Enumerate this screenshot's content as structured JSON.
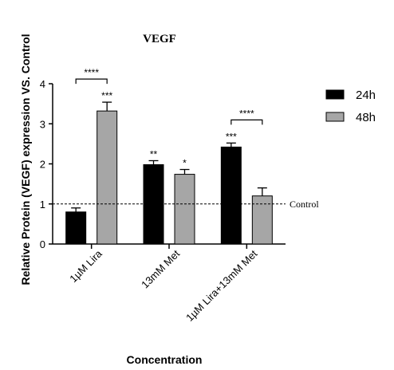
{
  "chart_data": {
    "type": "bar",
    "title": "VEGF",
    "xlabel": "Concentration",
    "ylabel": "Relative Protein (VEGF) expression VS. Control",
    "ylim": [
      0,
      4
    ],
    "yticks": [
      0,
      1,
      2,
      3,
      4
    ],
    "categories": [
      "1µM Lira",
      "13mM Met",
      "1µM Lira+13mM Met"
    ],
    "series": [
      {
        "name": "24h",
        "color": "#000000",
        "values": [
          0.8,
          1.98,
          2.42
        ],
        "errors": [
          0.1,
          0.1,
          0.1
        ],
        "significance": [
          "",
          "**",
          "***"
        ]
      },
      {
        "name": "48h",
        "color": "#a6a6a6",
        "values": [
          3.32,
          1.74,
          1.2
        ],
        "errors": [
          0.22,
          0.12,
          0.2
        ],
        "significance": [
          "***",
          "*",
          ""
        ]
      }
    ],
    "reference_line": {
      "value": 1,
      "label": "Control",
      "style": "dashed"
    },
    "comparison_brackets": [
      {
        "category": 0,
        "label": "****"
      },
      {
        "category": 2,
        "label": "****"
      }
    ],
    "legend": {
      "position": "right"
    },
    "grid": false
  }
}
